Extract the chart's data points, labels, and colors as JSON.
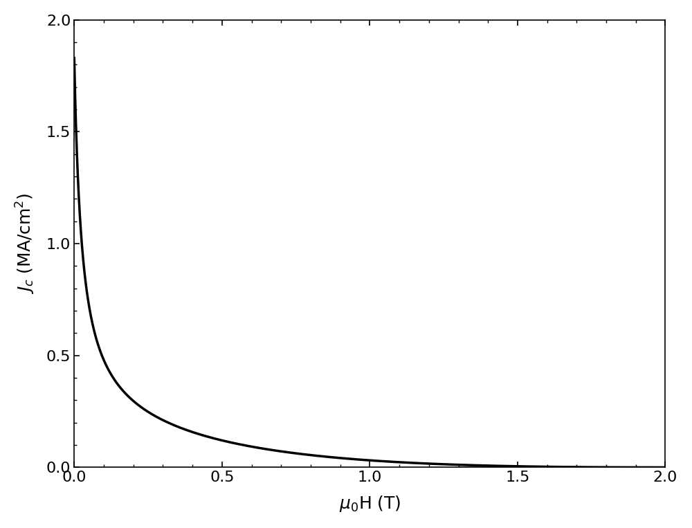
{
  "title": "",
  "xlabel": "$\\mu_0$H (T)",
  "ylabel": "$J_c$ (MA/cm$^2$)",
  "xlim": [
    0.0,
    2.0
  ],
  "ylim": [
    0.0,
    2.0
  ],
  "xticks": [
    0.0,
    0.5,
    1.0,
    1.5,
    2.0
  ],
  "yticks": [
    0.0,
    0.5,
    1.0,
    1.5,
    2.0
  ],
  "line_color": "#000000",
  "line_width": 2.5,
  "background_color": "#ffffff",
  "A1": 1.5,
  "B1": 0.03,
  "C1": 1.2,
  "A2": 0.33,
  "B2": 0.4,
  "C2": 0.65,
  "Hirr": 2.05,
  "D": 2.5
}
